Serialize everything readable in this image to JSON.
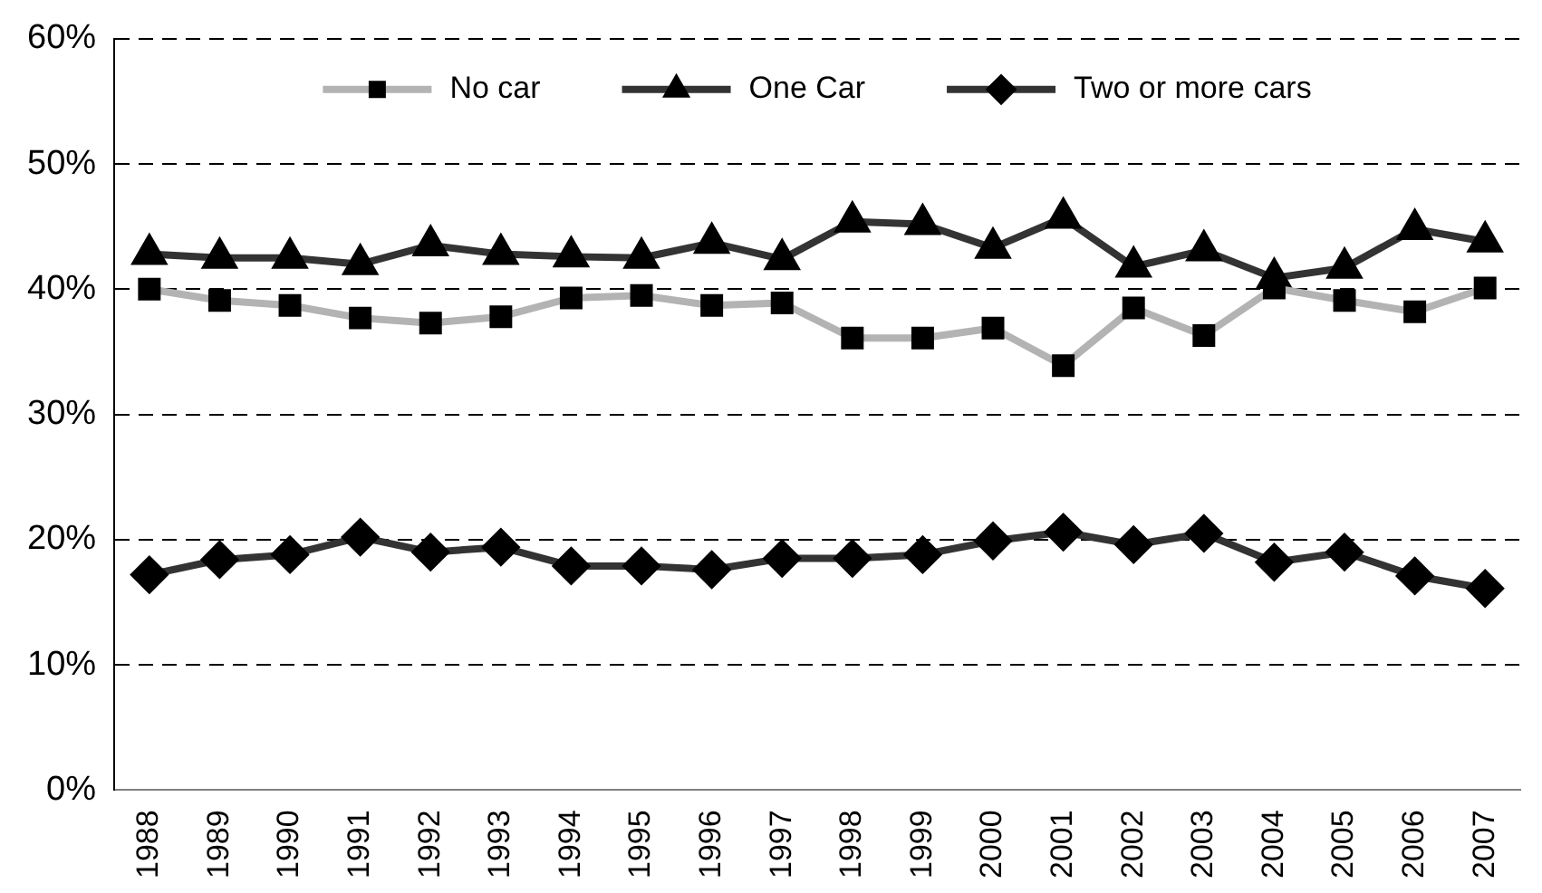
{
  "chart_data": {
    "type": "line",
    "categories": [
      "1988",
      "1989",
      "1990",
      "1991",
      "1992",
      "1993",
      "1994",
      "1995",
      "1996",
      "1997",
      "1998",
      "1999",
      "2000",
      "2001",
      "2002",
      "2003",
      "2004",
      "2005",
      "2006",
      "2007"
    ],
    "series": [
      {
        "name": "No car",
        "color": "#b3b3b3",
        "marker": "square",
        "values": [
          40.0,
          39.1,
          38.7,
          37.7,
          37.3,
          37.8,
          39.3,
          39.5,
          38.7,
          38.9,
          36.1,
          36.1,
          36.9,
          33.9,
          38.5,
          36.3,
          40.1,
          39.1,
          38.2,
          40.1
        ]
      },
      {
        "name": "One Car",
        "color": "#333333",
        "marker": "triangle",
        "values": [
          42.8,
          42.5,
          42.5,
          42.0,
          43.5,
          42.8,
          42.6,
          42.5,
          43.7,
          42.4,
          45.4,
          45.2,
          43.3,
          45.7,
          41.8,
          43.1,
          40.9,
          41.7,
          44.8,
          43.8
        ]
      },
      {
        "name": "Two or more cars",
        "color": "#333333",
        "marker": "diamond",
        "values": [
          17.2,
          18.4,
          18.8,
          20.2,
          19.0,
          19.4,
          17.9,
          17.9,
          17.6,
          18.5,
          18.5,
          18.8,
          19.9,
          20.6,
          19.6,
          20.5,
          18.2,
          19.0,
          17.1,
          16.1
        ]
      }
    ],
    "ylim": [
      0,
      60
    ],
    "yticks": [
      {
        "value": 0,
        "label": "0%"
      },
      {
        "value": 10,
        "label": "10%"
      },
      {
        "value": 20,
        "label": "20%"
      },
      {
        "value": 30,
        "label": "30%"
      },
      {
        "value": 40,
        "label": "40%"
      },
      {
        "value": 50,
        "label": "50%"
      },
      {
        "value": 60,
        "label": "60%"
      }
    ],
    "grid": "y",
    "legend": "top",
    "line_style": "solid"
  }
}
